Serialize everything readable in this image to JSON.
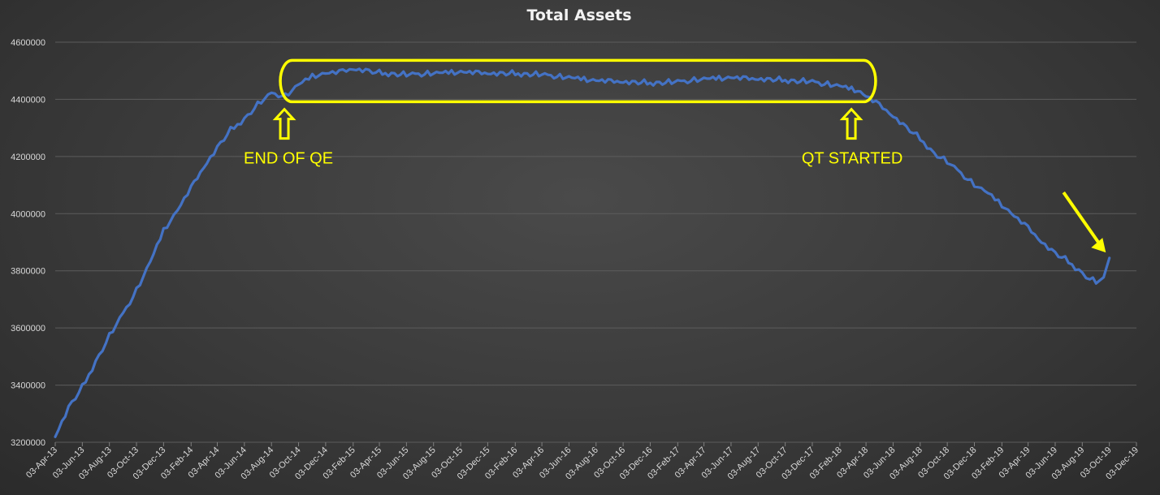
{
  "chart_data": {
    "type": "line",
    "title": "Total Assets",
    "xlabel": "",
    "ylabel": "",
    "ylim": [
      3200000,
      4600000
    ],
    "yticks": [
      3200000,
      3400000,
      3600000,
      3800000,
      4000000,
      4200000,
      4400000,
      4600000
    ],
    "ytick_labels": [
      "3200000",
      "3400000",
      "3600000",
      "3800000",
      "4000000",
      "4200000",
      "4400000",
      "4600000"
    ],
    "xlim": [
      "2013-04-03",
      "2019-12-03"
    ],
    "xtick_labels": [
      "03-Apr-13",
      "03-Jun-13",
      "03-Aug-13",
      "03-Oct-13",
      "03-Dec-13",
      "03-Feb-14",
      "03-Apr-14",
      "03-Jun-14",
      "03-Aug-14",
      "03-Oct-14",
      "03-Dec-14",
      "03-Feb-15",
      "03-Apr-15",
      "03-Jun-15",
      "03-Aug-15",
      "03-Oct-15",
      "03-Dec-15",
      "03-Feb-16",
      "03-Apr-16",
      "03-Jun-16",
      "03-Aug-16",
      "03-Oct-16",
      "03-Dec-16",
      "03-Feb-17",
      "03-Apr-17",
      "03-Jun-17",
      "03-Aug-17",
      "03-Oct-17",
      "03-Dec-17",
      "03-Feb-18",
      "03-Apr-18",
      "03-Jun-18",
      "03-Aug-18",
      "03-Oct-18",
      "03-Dec-18",
      "03-Feb-19",
      "03-Apr-19",
      "03-Jun-19",
      "03-Aug-19",
      "03-Oct-19",
      "03-Dec-19"
    ],
    "xtick_dates": [
      "2013-04-03",
      "2013-06-03",
      "2013-08-03",
      "2013-10-03",
      "2013-12-03",
      "2014-02-03",
      "2014-04-03",
      "2014-06-03",
      "2014-08-03",
      "2014-10-03",
      "2014-12-03",
      "2015-02-03",
      "2015-04-03",
      "2015-06-03",
      "2015-08-03",
      "2015-10-03",
      "2015-12-03",
      "2016-02-03",
      "2016-04-03",
      "2016-06-03",
      "2016-08-03",
      "2016-10-03",
      "2016-12-03",
      "2017-02-03",
      "2017-04-03",
      "2017-06-03",
      "2017-08-03",
      "2017-10-03",
      "2017-12-03",
      "2018-02-03",
      "2018-04-03",
      "2018-06-03",
      "2018-08-03",
      "2018-10-03",
      "2018-12-03",
      "2019-02-03",
      "2019-04-03",
      "2019-06-03",
      "2019-08-03",
      "2019-10-03",
      "2019-12-03"
    ],
    "grid": "horizontal",
    "legend": "none",
    "line_color": "#4472c4",
    "series": [
      {
        "x": [
          "2013-04-03",
          "2013-05-03",
          "2013-06-03",
          "2013-07-03",
          "2013-08-03",
          "2013-09-03",
          "2013-10-03",
          "2013-11-03",
          "2013-12-03",
          "2014-01-03",
          "2014-02-03",
          "2014-03-03",
          "2014-04-03",
          "2014-05-03",
          "2014-06-03",
          "2014-07-03",
          "2014-08-03",
          "2014-09-03",
          "2014-10-03",
          "2014-11-03",
          "2014-12-03",
          "2015-01-03",
          "2015-02-03",
          "2015-03-03",
          "2015-04-03",
          "2015-06-03",
          "2015-08-03",
          "2015-10-03",
          "2015-12-03",
          "2016-02-03",
          "2016-04-03",
          "2016-06-03",
          "2016-08-03",
          "2016-10-03",
          "2016-12-03",
          "2017-02-03",
          "2017-04-03",
          "2017-06-03",
          "2017-08-03",
          "2017-10-03",
          "2017-12-03",
          "2018-02-03",
          "2018-03-15",
          "2018-04-03",
          "2018-05-03",
          "2018-06-03",
          "2018-07-03",
          "2018-08-03",
          "2018-09-03",
          "2018-10-03",
          "2018-11-03",
          "2018-12-03",
          "2019-01-03",
          "2019-02-03",
          "2019-03-03",
          "2019-04-03",
          "2019-05-03",
          "2019-06-03",
          "2019-07-03",
          "2019-08-03",
          "2019-08-20",
          "2019-09-03",
          "2019-09-20",
          "2019-10-03"
        ],
        "values": [
          3220000,
          3320000,
          3390000,
          3480000,
          3570000,
          3650000,
          3730000,
          3830000,
          3940000,
          4010000,
          4090000,
          4160000,
          4230000,
          4290000,
          4330000,
          4380000,
          4420000,
          4410000,
          4450000,
          4480000,
          4490000,
          4495000,
          4505000,
          4500000,
          4490000,
          4485000,
          4490000,
          4495000,
          4490000,
          4488000,
          4485000,
          4475000,
          4465000,
          4460000,
          4455000,
          4460000,
          4470000,
          4475000,
          4470000,
          4465000,
          4460000,
          4445000,
          4430000,
          4410000,
          4380000,
          4340000,
          4300000,
          4260000,
          4210000,
          4180000,
          4140000,
          4100000,
          4070000,
          4030000,
          3990000,
          3950000,
          3900000,
          3860000,
          3830000,
          3790000,
          3770000,
          3760000,
          3770000,
          3845000
        ]
      }
    ],
    "annotations": [
      {
        "text": "END OF QE",
        "x": "2014-09-01",
        "y": 4405000
      },
      {
        "text": "QT STARTED",
        "x": "2018-03-01",
        "y": 4405000
      },
      {
        "text": "",
        "x": "2019-09-25",
        "y": 3830000,
        "kind": "arrow"
      }
    ],
    "highlight_ellipse": {
      "x_from": "2014-09-01",
      "x_to": "2018-04-10",
      "y_from": 4400000,
      "y_to": 4525000
    }
  }
}
